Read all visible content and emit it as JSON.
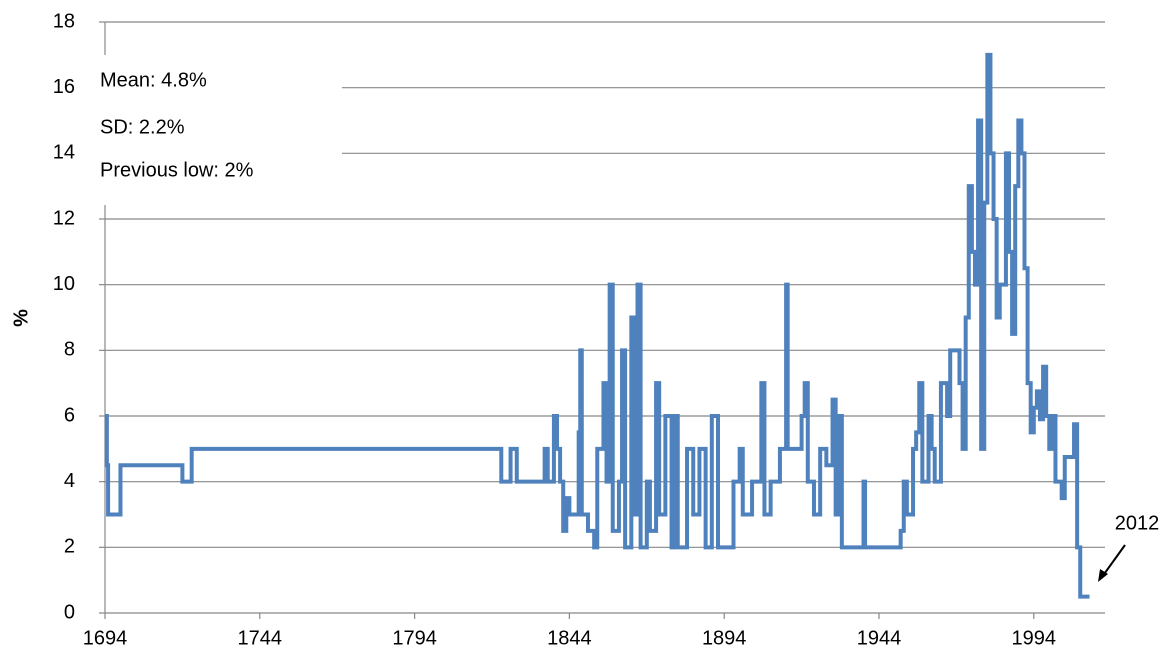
{
  "chart_data": {
    "type": "line",
    "step": "post",
    "y_label": "%",
    "annotations": [
      "Mean: 4.8%",
      "SD: 2.2%",
      "Previous low: 2%"
    ],
    "callout": "2012",
    "xlim": [
      1694,
      2017
    ],
    "xticks": [
      1694,
      1744,
      1794,
      1844,
      1894,
      1944,
      1994
    ],
    "ylim": [
      0,
      18
    ],
    "yticks": [
      0,
      2,
      4,
      6,
      8,
      10,
      12,
      14,
      16,
      18
    ],
    "grid": true,
    "series": [
      {
        "color": "#4f81bd",
        "x": [
          1694,
          1694.6,
          1695,
          1699,
          1719,
          1722,
          1822,
          1825,
          1827,
          1836,
          1837,
          1839,
          1840,
          1841,
          1842,
          1843,
          1844,
          1847,
          1847.5,
          1848,
          1850,
          1852,
          1853,
          1855,
          1856,
          1857,
          1858,
          1860,
          1861,
          1862,
          1864,
          1865,
          1866,
          1867,
          1869,
          1870,
          1872,
          1873,
          1875,
          1877,
          1878,
          1879,
          1882,
          1884,
          1886,
          1888,
          1890,
          1892,
          1895,
          1897,
          1899,
          1900,
          1903,
          1906,
          1907,
          1909,
          1912,
          1914,
          1914.5,
          1919,
          1920,
          1921,
          1923,
          1925,
          1927,
          1929,
          1930,
          1931,
          1932,
          1939,
          1939.5,
          1951,
          1952,
          1953,
          1955,
          1956,
          1957,
          1958,
          1960,
          1961,
          1962,
          1964,
          1966,
          1967,
          1969,
          1970,
          1971,
          1972,
          1973,
          1974,
          1975,
          1976,
          1977,
          1978,
          1979,
          1980,
          1981,
          1982,
          1983,
          1985,
          1986,
          1987,
          1988,
          1989,
          1990,
          1991,
          1992,
          1993,
          1994,
          1995,
          1996,
          1997,
          1998,
          1999,
          2000,
          2001,
          2003,
          2004,
          2006,
          2007,
          2008,
          2009,
          2012
        ],
        "values": [
          6,
          4.5,
          3,
          4.5,
          4,
          5,
          4,
          5,
          4,
          5,
          4,
          6,
          5,
          4,
          2.5,
          3.5,
          3,
          5.5,
          8,
          3,
          2.5,
          2,
          5,
          7,
          4,
          10,
          2.5,
          4,
          8,
          2,
          9,
          3,
          10,
          2,
          4,
          2.5,
          7,
          3,
          6,
          2,
          6,
          2,
          5,
          3,
          5,
          2,
          6,
          2,
          2,
          4,
          5,
          3,
          4,
          7,
          3,
          4,
          5,
          10,
          5,
          6,
          7,
          4,
          3,
          5,
          4.5,
          6.5,
          3,
          6,
          2,
          4,
          2,
          2.5,
          4,
          3,
          5,
          5.5,
          7,
          4,
          6,
          5,
          4,
          7,
          6,
          8,
          8,
          7,
          5,
          9,
          13,
          11,
          10,
          15,
          5,
          12.5,
          17,
          14,
          12,
          9,
          10,
          14,
          11,
          8.5,
          13,
          15,
          14,
          10.5,
          7,
          5.5,
          6.25,
          6.75,
          5.9,
          7.5,
          6,
          5,
          6,
          4,
          3.5,
          4.75,
          4.75,
          5.75,
          2,
          0.5,
          0.5
        ]
      }
    ]
  }
}
